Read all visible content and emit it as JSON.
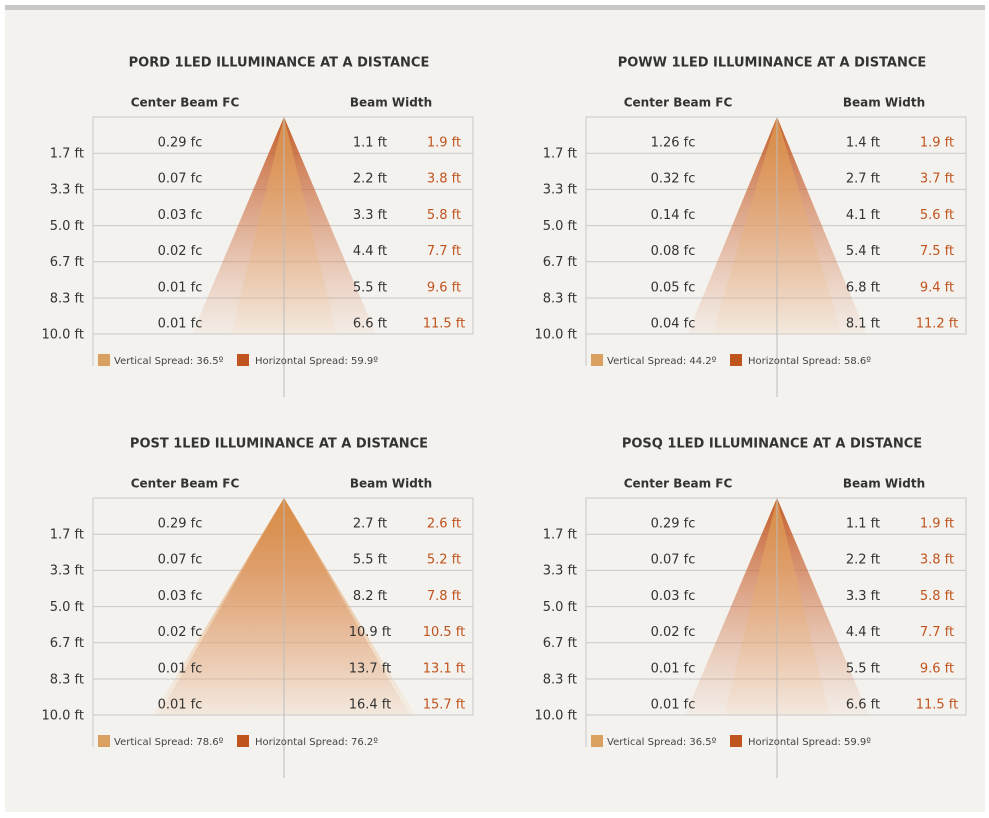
{
  "panels": [
    {
      "title": "PORD 1LED ILLUMINANCE AT A DISTANCE",
      "col_center": "Center Beam FC",
      "col_width": "Beam Width",
      "distances": [
        "1.7 ft",
        "3.3 ft",
        "5.0 ft",
        "6.7 ft",
        "8.3 ft",
        "10.0 ft"
      ],
      "center_fc": [
        "0.29 fc",
        "0.07 fc",
        "0.03 fc",
        "0.02 fc",
        "0.01 fc",
        "0.01 fc"
      ],
      "vertical_width": [
        "1.1 ft",
        "2.2 ft",
        "3.3 ft",
        "4.4 ft",
        "5.5 ft",
        "6.6 ft"
      ],
      "horizontal_width": [
        "1.9 ft",
        "3.8 ft",
        "5.8 ft",
        "7.7 ft",
        "9.6 ft",
        "11.5 ft"
      ],
      "legend_vertical": "Vertical Spread: 36.5º",
      "legend_horizontal": "Horizontal Spread: 59.9º"
    },
    {
      "title": "POWW 1LED ILLUMINANCE AT A DISTANCE",
      "col_center": "Center Beam FC",
      "col_width": "Beam Width",
      "distances": [
        "1.7 ft",
        "3.3 ft",
        "5.0 ft",
        "6.7 ft",
        "8.3 ft",
        "10.0 ft"
      ],
      "center_fc": [
        "1.26 fc",
        "0.32 fc",
        "0.14 fc",
        "0.08 fc",
        "0.05 fc",
        "0.04 fc"
      ],
      "vertical_width": [
        "1.4 ft",
        "2.7 ft",
        "4.1 ft",
        "5.4 ft",
        "6.8 ft",
        "8.1 ft"
      ],
      "horizontal_width": [
        "1.9 ft",
        "3.7 ft",
        "5.6 ft",
        "7.5 ft",
        "9.4 ft",
        "11.2 ft"
      ],
      "legend_vertical": "Vertical Spread: 44.2º",
      "legend_horizontal": "Horizontal Spread: 58.6º"
    },
    {
      "title": "POST 1LED ILLUMINANCE AT A DISTANCE",
      "col_center": "Center Beam FC",
      "col_width": "Beam Width",
      "distances": [
        "1.7 ft",
        "3.3 ft",
        "5.0 ft",
        "6.7 ft",
        "8.3 ft",
        "10.0 ft"
      ],
      "center_fc": [
        "0.29 fc",
        "0.07 fc",
        "0.03 fc",
        "0.02 fc",
        "0.01 fc",
        "0.01 fc"
      ],
      "vertical_width": [
        "2.7 ft",
        "5.5 ft",
        "8.2 ft",
        "10.9 ft",
        "13.7 ft",
        "16.4 ft"
      ],
      "horizontal_width": [
        "2.6 ft",
        "5.2 ft",
        "7.8 ft",
        "10.5 ft",
        "13.1 ft",
        "15.7 ft"
      ],
      "legend_vertical": "Vertical Spread: 78.6º",
      "legend_horizontal": "Horizontal Spread: 76.2º"
    },
    {
      "title": "POSQ 1LED ILLUMINANCE AT A DISTANCE",
      "col_center": "Center Beam FC",
      "col_width": "Beam Width",
      "distances": [
        "1.7 ft",
        "3.3 ft",
        "5.0 ft",
        "6.7 ft",
        "8.3 ft",
        "10.0 ft"
      ],
      "center_fc": [
        "0.29 fc",
        "0.07 fc",
        "0.03 fc",
        "0.02 fc",
        "0.01 fc",
        "0.01 fc"
      ],
      "vertical_width": [
        "1.1 ft",
        "2.2 ft",
        "3.3 ft",
        "4.4 ft",
        "5.5 ft",
        "6.6 ft"
      ],
      "horizontal_width": [
        "1.9 ft",
        "3.8 ft",
        "5.8 ft",
        "7.7 ft",
        "9.6 ft",
        "11.5 ft"
      ],
      "legend_vertical": "Vertical Spread: 36.5º",
      "legend_horizontal": "Horizontal Spread: 59.9º"
    }
  ]
}
